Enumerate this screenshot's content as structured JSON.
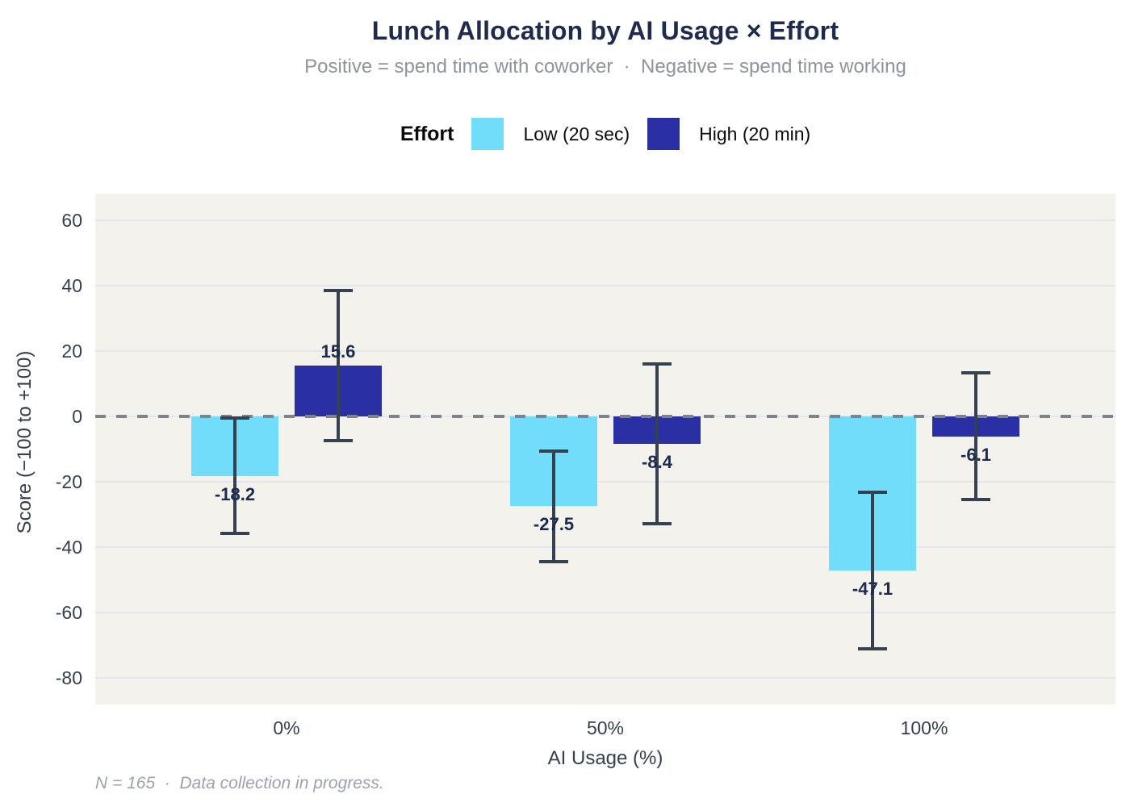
{
  "header": {
    "title": "Lunch Allocation by AI Usage × Effort",
    "subtitle": "Positive = spend time with coworker  ·  Negative = spend time working"
  },
  "legend": {
    "title": "Effort"
  },
  "footer": {
    "note": "N = 165  ·  Data collection in progress."
  },
  "colors": {
    "panel_bg": "#F4F2ED",
    "grid": "#E3E7ED",
    "errorbar": "#36414F",
    "zero_line": "#7C838B",
    "title_text": "#1E2B4D",
    "subtitle_text": "#8D949E",
    "axis_text": "#333F4F",
    "value_label_text": "#1B2A4E",
    "footer_text": "#99A2AD"
  },
  "chart_data": {
    "type": "bar",
    "title": "Lunch Allocation by AI Usage × Effort",
    "subtitle": "Positive = spend time with coworker  ·  Negative = spend time working",
    "xlabel": "AI Usage (%)",
    "ylabel": "Score (−100 to +100)",
    "categories": [
      "0%",
      "50%",
      "100%"
    ],
    "series": [
      {
        "name": "Low (20 sec)",
        "color": "#72DCFB",
        "values": [
          -18.2,
          -27.5,
          -47.1
        ],
        "ci_low": [
          -35.8,
          -44.5,
          -71.1
        ],
        "ci_high": [
          -0.6,
          -10.5,
          -23.1
        ]
      },
      {
        "name": "High (20 min)",
        "color": "#2A30A3",
        "values": [
          15.6,
          -8.4,
          -6.1
        ],
        "ci_low": [
          -7.4,
          -32.9,
          -25.4
        ],
        "ci_high": [
          38.6,
          16.1,
          13.2
        ]
      }
    ],
    "value_labels": [
      "-18.2",
      "15.6",
      "-27.5",
      "-8.4",
      "-47.1",
      "-6.1"
    ],
    "yticks": [
      60,
      40,
      20,
      0,
      -20,
      -40,
      -60,
      -80
    ],
    "ylim": [
      -88.1,
      68.1
    ],
    "grid": "horizontal-major",
    "zero_line": "dashed",
    "legend_position": "top",
    "caption": "N = 165  ·  Data collection in progress."
  }
}
